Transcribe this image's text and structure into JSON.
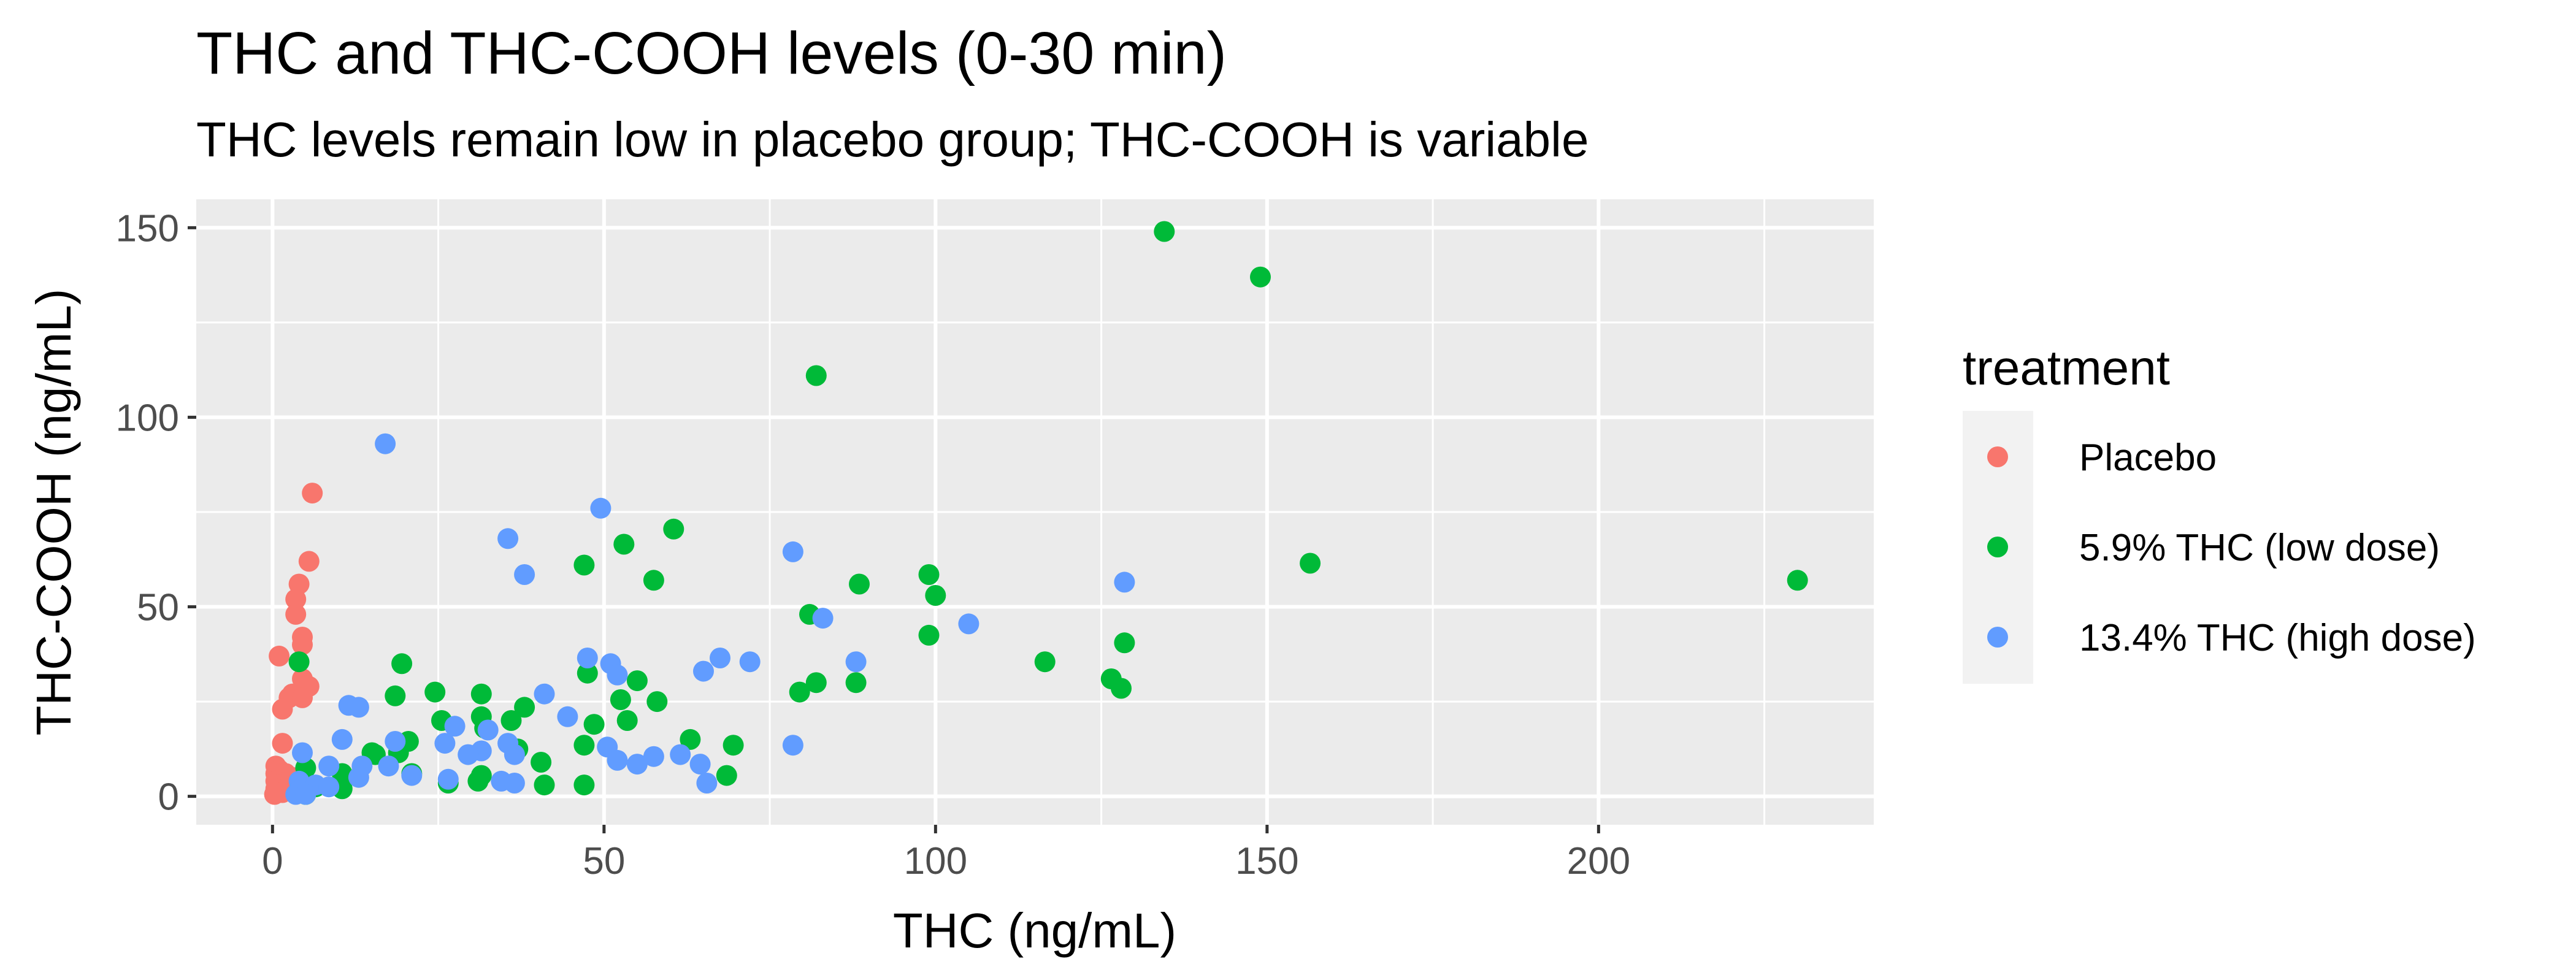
{
  "chart_data": {
    "type": "scatter",
    "title": "THC and THC-COOH levels (0-30 min)",
    "subtitle": "THC levels remain low in placebo group; THC-COOH is variable",
    "xlabel": "THC (ng/mL)",
    "ylabel": "THC-COOH (ng/mL)",
    "xlim": [
      -11.5,
      241.5
    ],
    "ylim": [
      -7.5,
      157.5
    ],
    "x_ticks": [
      0,
      50,
      100,
      150,
      200
    ],
    "y_ticks": [
      0,
      50,
      100,
      150
    ],
    "grid": true,
    "legend": {
      "title": "treatment",
      "position": "right"
    },
    "series": [
      {
        "name": "Placebo",
        "color": "#F8766D",
        "points": [
          [
            6,
            80
          ],
          [
            5.5,
            62
          ],
          [
            4,
            56
          ],
          [
            3.5,
            52
          ],
          [
            3.5,
            48
          ],
          [
            4.5,
            42
          ],
          [
            4.5,
            40
          ],
          [
            1,
            37
          ],
          [
            4.5,
            31
          ],
          [
            5.5,
            29
          ],
          [
            3,
            27
          ],
          [
            2.5,
            26
          ],
          [
            4.5,
            26
          ],
          [
            1.5,
            23
          ],
          [
            1.5,
            14
          ],
          [
            0.5,
            8
          ],
          [
            1,
            7
          ],
          [
            0.5,
            6
          ],
          [
            2,
            6
          ],
          [
            3,
            5
          ],
          [
            0.5,
            4
          ],
          [
            1,
            3
          ],
          [
            0.5,
            2
          ],
          [
            2,
            2
          ],
          [
            0.5,
            1
          ],
          [
            1.5,
            1
          ],
          [
            0.3,
            0.5
          ]
        ]
      },
      {
        "name": "5.9% THC (low dose)",
        "color": "#00BA38",
        "points": [
          [
            134.5,
            149
          ],
          [
            149,
            137
          ],
          [
            82,
            111
          ],
          [
            230,
            57
          ],
          [
            156.5,
            61.5
          ],
          [
            60.5,
            70.5
          ],
          [
            53,
            66.5
          ],
          [
            47,
            61
          ],
          [
            57.5,
            57
          ],
          [
            88.5,
            56
          ],
          [
            99,
            58.5
          ],
          [
            100,
            53
          ],
          [
            81,
            48
          ],
          [
            99,
            42.5
          ],
          [
            128.5,
            40.5
          ],
          [
            116.5,
            35.5
          ],
          [
            126.5,
            31
          ],
          [
            128,
            28.5
          ],
          [
            88,
            30
          ],
          [
            82,
            30
          ],
          [
            79.5,
            27.5
          ],
          [
            4,
            35.5
          ],
          [
            19.5,
            35
          ],
          [
            47.5,
            32.5
          ],
          [
            55,
            30.5
          ],
          [
            24.5,
            27.5
          ],
          [
            18.5,
            26.5
          ],
          [
            31.5,
            27
          ],
          [
            52.5,
            25.5
          ],
          [
            58,
            25
          ],
          [
            38,
            23.5
          ],
          [
            31.5,
            21
          ],
          [
            25.5,
            20
          ],
          [
            36,
            20
          ],
          [
            53.5,
            20
          ],
          [
            48.5,
            19
          ],
          [
            32,
            18
          ],
          [
            15,
            11.5
          ],
          [
            20.5,
            14.5
          ],
          [
            63,
            15
          ],
          [
            69.5,
            13.5
          ],
          [
            47,
            13.5
          ],
          [
            37,
            12.5
          ],
          [
            19,
            11.5
          ],
          [
            15.5,
            11
          ],
          [
            40.5,
            9
          ],
          [
            5,
            7.5
          ],
          [
            10.5,
            6
          ],
          [
            21,
            6
          ],
          [
            31.5,
            5.5
          ],
          [
            68.5,
            5.5
          ],
          [
            10.5,
            4
          ],
          [
            31,
            4
          ],
          [
            26.5,
            3.5
          ],
          [
            47,
            3
          ],
          [
            41,
            3
          ],
          [
            6.5,
            2.5
          ],
          [
            10.5,
            2
          ],
          [
            5,
            0.5
          ]
        ]
      },
      {
        "name": "13.4% THC (high dose)",
        "color": "#619CFF",
        "points": [
          [
            17,
            93
          ],
          [
            49.5,
            76
          ],
          [
            35.5,
            68
          ],
          [
            78.5,
            64.5
          ],
          [
            38,
            58.5
          ],
          [
            128.5,
            56.5
          ],
          [
            83,
            47
          ],
          [
            105,
            45.5
          ],
          [
            47.5,
            36.5
          ],
          [
            51,
            35
          ],
          [
            67.5,
            36.5
          ],
          [
            72,
            35.5
          ],
          [
            88,
            35.5
          ],
          [
            65,
            33
          ],
          [
            52,
            32
          ],
          [
            11.5,
            24
          ],
          [
            13,
            23.5
          ],
          [
            41,
            27
          ],
          [
            44.5,
            21
          ],
          [
            27.5,
            18.5
          ],
          [
            32.5,
            17.5
          ],
          [
            10.5,
            15
          ],
          [
            18.5,
            14.5
          ],
          [
            26,
            14
          ],
          [
            35.5,
            14
          ],
          [
            50.5,
            13
          ],
          [
            78.5,
            13.5
          ],
          [
            4.5,
            11.5
          ],
          [
            31.5,
            12
          ],
          [
            29.5,
            11
          ],
          [
            36.5,
            11
          ],
          [
            57.5,
            10.5
          ],
          [
            61.5,
            11
          ],
          [
            64.5,
            8.5
          ],
          [
            52,
            9.5
          ],
          [
            55,
            8.5
          ],
          [
            8.5,
            8
          ],
          [
            17.5,
            8
          ],
          [
            13.5,
            8
          ],
          [
            13,
            5
          ],
          [
            21,
            5.5
          ],
          [
            4,
            4
          ],
          [
            26.5,
            4.5
          ],
          [
            34.5,
            4
          ],
          [
            36.5,
            3.5
          ],
          [
            65.5,
            3.5
          ],
          [
            6.5,
            3
          ],
          [
            8.5,
            2.5
          ],
          [
            4,
            1.5
          ],
          [
            3.5,
            0.5
          ],
          [
            5,
            0.5
          ]
        ]
      }
    ]
  }
}
